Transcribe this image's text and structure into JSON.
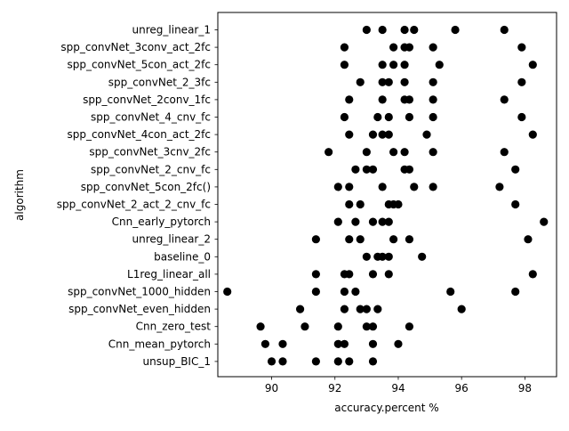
{
  "chart_data": {
    "type": "scatter",
    "title": "",
    "xlabel": "accuracy.percent %",
    "ylabel": "algorithm",
    "xlim": [
      88.3,
      99.0
    ],
    "xticks": [
      90,
      92,
      94,
      96,
      98
    ],
    "grid": false,
    "marker_color": "#000000",
    "categories": [
      "unreg_linear_1",
      "spp_convNet_3conv_act_2fc",
      "spp_convNet_5con_act_2fc",
      "spp_convNet_2_3fc",
      "spp_convNet_2conv_1fc",
      "spp_convNet_4_cnv_fc",
      "spp_convNet_4con_act_2fc",
      "spp_convNet_3cnv_2fc",
      "spp_convNet_2_cnv_fc",
      "spp_convNet_5con_2fc()",
      "spp_convNet_2_act_2_cnv_fc",
      "Cnn_early_pytorch",
      "unreg_linear_2",
      "baseline_0",
      "L1reg_linear_all",
      "spp_convNet_1000_hidden",
      "spp_convNet_even_hidden",
      "Cnn_zero_test",
      "Cnn_mean_pytorch",
      "unsup_BIC_1"
    ],
    "series": [
      {
        "category": "unreg_linear_1",
        "x": [
          93.0,
          93.5,
          94.2,
          94.5,
          95.8,
          97.35
        ]
      },
      {
        "category": "spp_convNet_3conv_act_2fc",
        "x": [
          92.3,
          93.85,
          94.2,
          94.35,
          95.1,
          97.9
        ]
      },
      {
        "category": "spp_convNet_5con_act_2fc",
        "x": [
          92.3,
          93.5,
          93.85,
          94.2,
          95.3,
          98.25
        ]
      },
      {
        "category": "spp_convNet_2_3fc",
        "x": [
          92.8,
          93.5,
          93.7,
          94.2,
          95.1,
          97.9
        ]
      },
      {
        "category": "spp_convNet_2conv_1fc",
        "x": [
          92.45,
          93.5,
          94.2,
          94.35,
          95.1,
          97.35
        ]
      },
      {
        "category": "spp_convNet_4_cnv_fc",
        "x": [
          92.3,
          93.35,
          93.7,
          94.35,
          95.1,
          97.9
        ]
      },
      {
        "category": "spp_convNet_4con_act_2fc",
        "x": [
          92.45,
          93.2,
          93.5,
          93.7,
          94.9,
          98.25
        ]
      },
      {
        "category": "spp_convNet_3cnv_2fc",
        "x": [
          91.8,
          93.0,
          93.85,
          94.2,
          95.1,
          97.35
        ]
      },
      {
        "category": "spp_convNet_2_cnv_fc",
        "x": [
          92.65,
          93.0,
          93.2,
          94.2,
          94.35,
          97.7
        ]
      },
      {
        "category": "spp_convNet_5con_2fc()",
        "x": [
          92.1,
          92.45,
          93.5,
          94.5,
          95.1,
          97.2
        ]
      },
      {
        "category": "spp_convNet_2_act_2_cnv_fc",
        "x": [
          92.45,
          92.8,
          93.7,
          93.85,
          94.0,
          97.7
        ]
      },
      {
        "category": "Cnn_early_pytorch",
        "x": [
          92.1,
          92.65,
          93.2,
          93.5,
          93.7,
          98.6
        ]
      },
      {
        "category": "unreg_linear_2",
        "x": [
          91.4,
          92.45,
          92.8,
          93.85,
          94.35,
          98.1
        ]
      },
      {
        "category": "baseline_0",
        "x": [
          93.0,
          93.35,
          93.5,
          93.7,
          94.75
        ]
      },
      {
        "category": "L1reg_linear_all",
        "x": [
          91.4,
          92.3,
          92.45,
          93.2,
          93.7,
          98.25
        ]
      },
      {
        "category": "spp_convNet_1000_hidden",
        "x": [
          88.6,
          91.4,
          92.3,
          92.65,
          95.65,
          97.7
        ]
      },
      {
        "category": "spp_convNet_even_hidden",
        "x": [
          90.9,
          92.3,
          92.8,
          93.0,
          93.35,
          96.0
        ]
      },
      {
        "category": "Cnn_zero_test",
        "x": [
          89.65,
          91.05,
          92.1,
          93.0,
          93.2,
          94.35
        ]
      },
      {
        "category": "Cnn_mean_pytorch",
        "x": [
          89.8,
          90.35,
          92.1,
          92.3,
          93.2,
          94.0
        ]
      },
      {
        "category": "unsup_BIC_1",
        "x": [
          90.0,
          90.35,
          91.4,
          92.1,
          92.45,
          93.2
        ]
      }
    ]
  }
}
